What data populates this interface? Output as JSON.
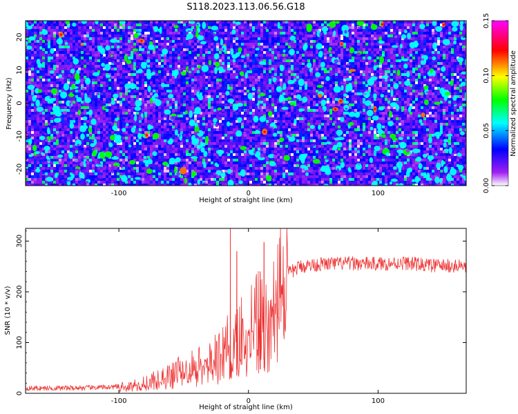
{
  "chart_data": [
    {
      "type": "heatmap",
      "title": "S118.2023.113.06.56.G18",
      "xlabel": "Height of straight line (km)",
      "ylabel": "Frequency (Hz)",
      "xlim": [
        -172,
        168
      ],
      "ylim": [
        -25,
        25
      ],
      "xticks": [
        -100,
        0,
        100
      ],
      "xtick_labels": [
        "-100",
        "0",
        "100"
      ],
      "yticks": [
        -20,
        -10,
        0,
        10,
        20
      ],
      "ytick_labels": [
        "-20",
        "-10",
        "0",
        "10",
        "20"
      ],
      "colorbar": {
        "label": "Normalized spectral amplitude",
        "range": [
          0.0,
          0.15
        ],
        "ticks": [
          0.0,
          0.05,
          0.1,
          0.15
        ],
        "tick_labels": [
          "0.00",
          "0.05",
          "0.10",
          "0.15"
        ],
        "colormap": [
          "#ffffff",
          "#a020f0",
          "#0000ff",
          "#00ffff",
          "#00ff00",
          "#ffff00",
          "#ff0000",
          "#ff00ff"
        ]
      },
      "description_of_values": "noise-like field, mostly 0.01-0.04 with scattered peaks 0.05-0.12"
    },
    {
      "type": "line",
      "xlabel": "Height of straight line (km)",
      "ylabel": "SNR (10 * v/v)",
      "xlim": [
        -172,
        168
      ],
      "ylim": [
        0,
        325
      ],
      "xticks": [
        -100,
        0,
        100
      ],
      "xtick_labels": [
        "-100",
        "0",
        "100"
      ],
      "yticks": [
        0,
        100,
        200,
        300
      ],
      "ytick_labels": [
        "0",
        "100",
        "200",
        "300"
      ],
      "series": [
        {
          "name": "SNR",
          "color": "#ee3333",
          "envelope_x": [
            -172,
            -150,
            -120,
            -100,
            -90,
            -80,
            -70,
            -60,
            -50,
            -40,
            -30,
            -20,
            -15,
            -10,
            -5,
            0,
            5,
            10,
            15,
            20,
            25,
            30,
            40,
            50,
            60,
            80,
            100,
            120,
            140,
            168
          ],
          "envelope_y": [
            10,
            10,
            11,
            13,
            16,
            22,
            30,
            40,
            50,
            60,
            70,
            85,
            100,
            115,
            125,
            140,
            150,
            160,
            175,
            195,
            215,
            235,
            250,
            253,
            255,
            256,
            255,
            257,
            252,
            250
          ],
          "spikes": [
            {
              "x": -14,
              "y": 325
            },
            {
              "x": -9,
              "y": 280
            },
            {
              "x": 12,
              "y": 298
            },
            {
              "x": 9,
              "y": 240
            }
          ]
        }
      ]
    }
  ]
}
